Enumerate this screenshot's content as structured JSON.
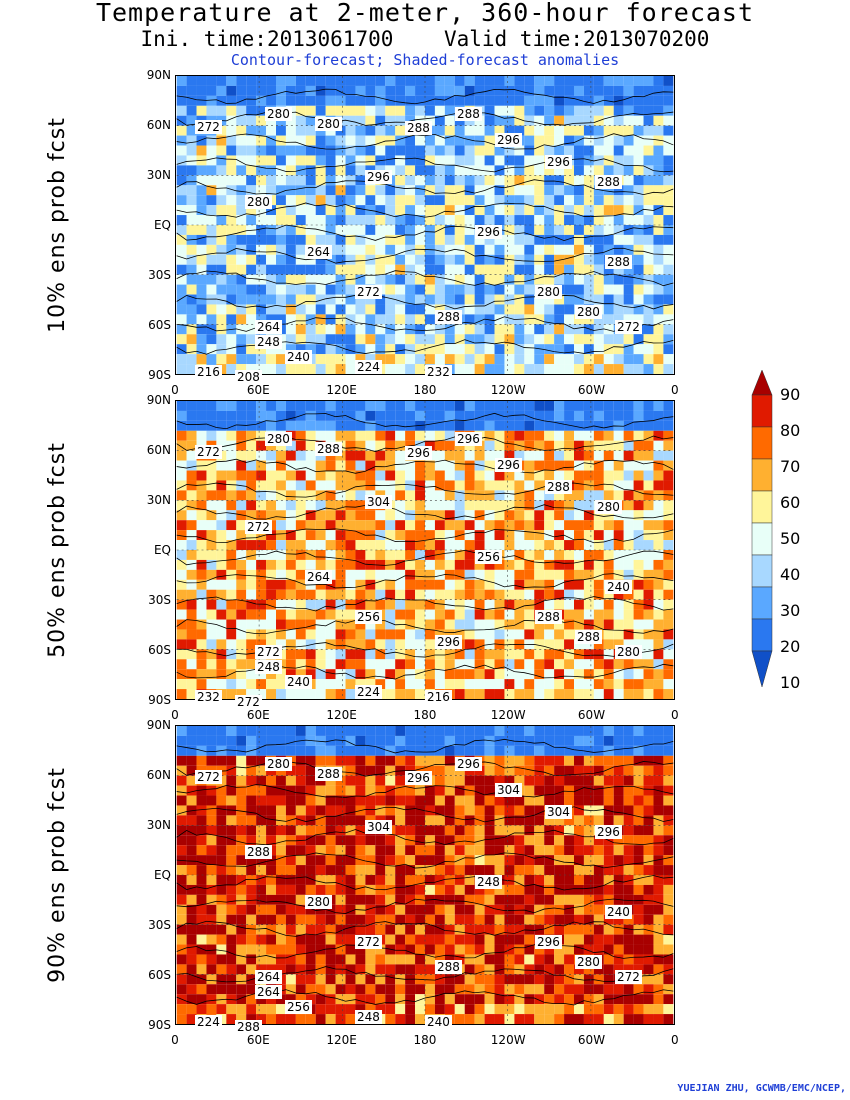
{
  "title": {
    "line1": "Temperature at 2-meter, 360-hour forecast",
    "line2": "Ini. time:2013061700    Valid time:2013070200",
    "line3": "Contour-forecast; Shaded-forecast anomalies"
  },
  "lat_ticks": [
    "90N",
    "60N",
    "30N",
    "EQ",
    "30S",
    "60S",
    "90S"
  ],
  "lon_ticks": [
    "0",
    "60E",
    "120E",
    "180",
    "120W",
    "60W",
    "0"
  ],
  "panels": [
    {
      "label": "10% ens prob fcst",
      "warmth": 0.35,
      "contour_labels": [
        "272",
        "280",
        "280",
        "288",
        "288",
        "296",
        "296",
        "288",
        "280",
        "264",
        "272",
        "248",
        "240",
        "224",
        "232",
        "216",
        "208",
        "280",
        "296",
        "288",
        "280",
        "272",
        "264",
        "296",
        "288"
      ]
    },
    {
      "label": "50% ens prob fcst",
      "warmth": 0.62,
      "contour_labels": [
        "272",
        "280",
        "288",
        "296",
        "296",
        "296",
        "288",
        "280",
        "272",
        "264",
        "256",
        "248",
        "240",
        "224",
        "216",
        "232",
        "272",
        "288",
        "304",
        "296",
        "288",
        "280",
        "272",
        "256",
        "240"
      ]
    },
    {
      "label": "90% ens prob fcst",
      "warmth": 0.88,
      "contour_labels": [
        "272",
        "280",
        "288",
        "296",
        "296",
        "304",
        "304",
        "296",
        "288",
        "280",
        "272",
        "264",
        "256",
        "248",
        "240",
        "224",
        "288",
        "296",
        "304",
        "288",
        "280",
        "272",
        "264",
        "248",
        "240"
      ]
    }
  ],
  "colorbar": {
    "levels": [
      "90",
      "80",
      "70",
      "60",
      "50",
      "40",
      "30",
      "20",
      "10"
    ],
    "colors": [
      "#a80000",
      "#e01a00",
      "#ff6a00",
      "#ffb030",
      "#fff59a",
      "#e8fff8",
      "#a8d8ff",
      "#5aa8ff",
      "#2a78f0",
      "#1050c8"
    ]
  },
  "credit": "YUEJIAN ZHU, GCWMB/EMC/NCEP,"
}
